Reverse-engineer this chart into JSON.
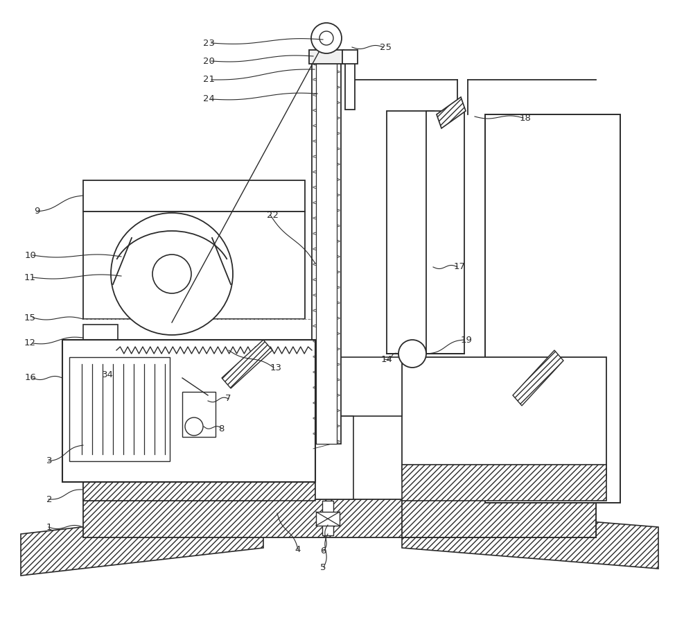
{
  "bg_color": "#ffffff",
  "line_color": "#2a2a2a",
  "fig_width": 10.0,
  "fig_height": 9.07,
  "dpi": 100
}
